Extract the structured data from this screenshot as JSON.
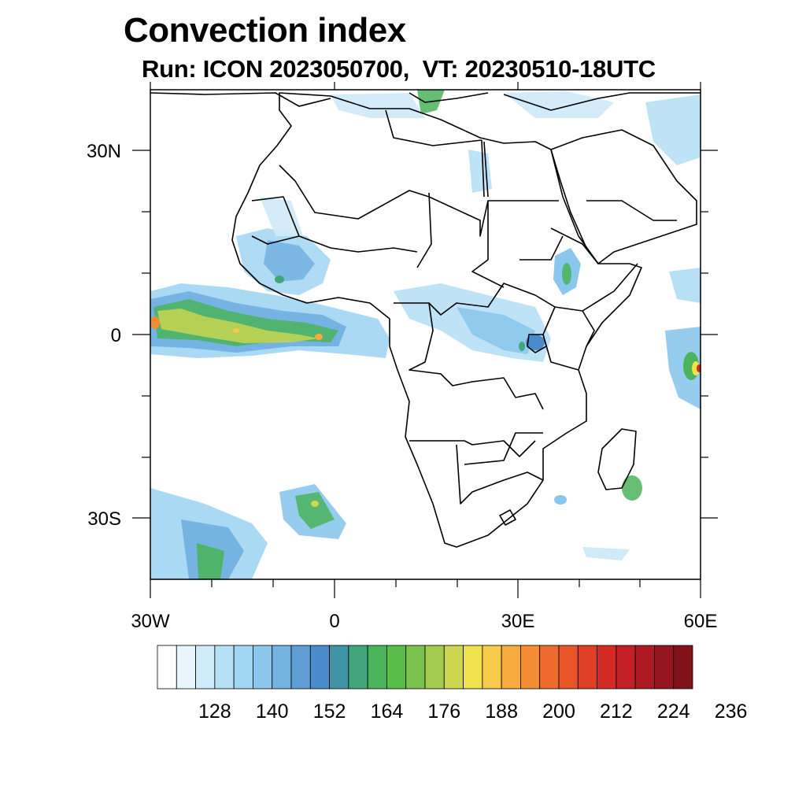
{
  "title": "Convection index",
  "subtitle": "Run: ICON 2023050700,  VT: 20230510-18UTC",
  "map": {
    "lat_labels": [
      "30N",
      "0",
      "30S"
    ],
    "lon_labels": [
      "30W",
      "0",
      "30E",
      "60E"
    ]
  },
  "colorbar": {
    "colors": [
      "#ffffff",
      "#e8f5fc",
      "#cfeaf8",
      "#b7e0f5",
      "#a1d6f2",
      "#8bc6ec",
      "#75b4e2",
      "#5f9fd6",
      "#4a8ccb",
      "#3f95a6",
      "#43a57b",
      "#4bb35c",
      "#59bd4a",
      "#79c24d",
      "#a3cc4f",
      "#cdd74f",
      "#f0e24d",
      "#f8ca4a",
      "#f7ab40",
      "#f48c36",
      "#ee6b2d",
      "#e75528",
      "#df3f25",
      "#d52b25",
      "#c21f27",
      "#ad1a24",
      "#951520",
      "#7f121b"
    ],
    "labels": [
      "128",
      "140",
      "152",
      "164",
      "176",
      "188",
      "200",
      "212",
      "224",
      "236"
    ]
  }
}
